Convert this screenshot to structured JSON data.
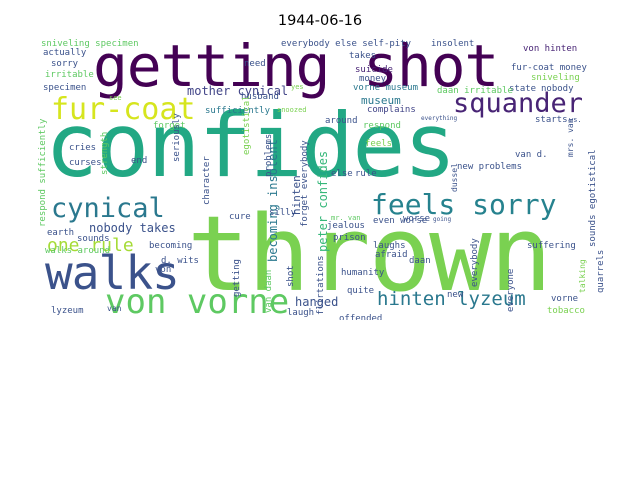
{
  "title": "1944-06-16",
  "words": [
    {
      "text": "thrown",
      "color": "#7ad151"
    },
    {
      "text": "confides",
      "color": "#22a884"
    },
    {
      "text": "getting shot",
      "color": "#440154"
    },
    {
      "text": "walks",
      "color": "#3b528b"
    },
    {
      "text": "fur-coat",
      "color": "#d6e51e"
    },
    {
      "text": "squander",
      "color": "#482475"
    },
    {
      "text": "cynical",
      "color": "#2a788e"
    },
    {
      "text": "feels sorry",
      "color": "#26828e"
    },
    {
      "text": "von vorne",
      "color": "#5ec962"
    },
    {
      "text": "hinten lyzeum",
      "color": "#2a788e"
    },
    {
      "text": "one rule",
      "color": "#a5db36"
    },
    {
      "text": "mother cynical",
      "color": "#414487"
    },
    {
      "text": "museum",
      "color": "#2a788e"
    },
    {
      "text": "nobody takes",
      "color": "#3b528b"
    },
    {
      "text": "hanged",
      "color": "#3b528b"
    },
    {
      "text": "sufficiently",
      "color": "#2a788e"
    },
    {
      "text": "becoming insolent",
      "color": "#2a788e"
    },
    {
      "text": "peter confides",
      "color": "#35b779"
    },
    {
      "text": "hinten",
      "color": "#3b528b"
    },
    {
      "text": "sniveling specimen",
      "color": "#5ec962"
    },
    {
      "text": "everybody else self-pity",
      "color": "#3b528b"
    },
    {
      "text": "insolent",
      "color": "#3b528b"
    },
    {
      "text": "von hinten",
      "color": "#482475"
    },
    {
      "text": "fur-coat money",
      "color": "#3b528b"
    },
    {
      "text": "sniveling",
      "color": "#7ad151"
    },
    {
      "text": "state",
      "color": "#3b528b"
    },
    {
      "text": "nobody",
      "color": "#3b528b"
    },
    {
      "text": "daan irritable",
      "color": "#5ec962"
    },
    {
      "text": "vorne museum",
      "color": "#2a788e"
    },
    {
      "text": "complains",
      "color": "#414487"
    },
    {
      "text": "suicide",
      "color": "#482475"
    },
    {
      "text": "takes",
      "color": "#3b528b"
    },
    {
      "text": "money",
      "color": "#3b528b"
    },
    {
      "text": "need",
      "color": "#3b528b"
    },
    {
      "text": "yes",
      "color": "#7ad151"
    },
    {
      "text": "husband",
      "color": "#3b528b"
    },
    {
      "text": "forget",
      "color": "#5ec962"
    },
    {
      "text": "sorry",
      "color": "#3b528b"
    },
    {
      "text": "irritable",
      "color": "#5ec962"
    },
    {
      "text": "actually",
      "color": "#3b528b"
    },
    {
      "text": "specimen",
      "color": "#3b528b"
    },
    {
      "text": "egotistical",
      "color": "#7ad151"
    },
    {
      "text": "cries",
      "color": "#3b528b"
    },
    {
      "text": "curses",
      "color": "#3b528b"
    },
    {
      "text": "end",
      "color": "#3b528b"
    },
    {
      "text": "around",
      "color": "#3b528b"
    },
    {
      "text": "respond",
      "color": "#5ec962"
    },
    {
      "text": "starts",
      "color": "#3b528b"
    },
    {
      "text": "feels",
      "color": "#7ad151"
    },
    {
      "text": "rule",
      "color": "#3b528b"
    },
    {
      "text": "else",
      "color": "#3b528b"
    },
    {
      "text": "new problems",
      "color": "#3b528b"
    },
    {
      "text": "sounds egotistical",
      "color": "#3b528b"
    },
    {
      "text": "even worse",
      "color": "#3b528b"
    },
    {
      "text": "prison",
      "color": "#3b528b"
    },
    {
      "text": "silly",
      "color": "#3b528b"
    },
    {
      "text": "cure",
      "color": "#3b528b"
    },
    {
      "text": "becoming",
      "color": "#3b528b"
    },
    {
      "text": "laughs",
      "color": "#3b528b"
    },
    {
      "text": "afraid",
      "color": "#3b528b"
    },
    {
      "text": "earth",
      "color": "#3b528b"
    },
    {
      "text": "sounds",
      "color": "#3b528b"
    },
    {
      "text": "walks around",
      "color": "#5ec962"
    },
    {
      "text": "d. wits",
      "color": "#3b528b"
    },
    {
      "text": "daan",
      "color": "#3b528b"
    },
    {
      "text": "humanity",
      "color": "#3b528b"
    },
    {
      "text": "quite",
      "color": "#3b528b"
    },
    {
      "text": "new",
      "color": "#3b528b"
    },
    {
      "text": "vorne",
      "color": "#3b528b"
    },
    {
      "text": "tobacco",
      "color": "#7ad151"
    },
    {
      "text": "lyzeum",
      "color": "#3b528b"
    },
    {
      "text": "laugh",
      "color": "#3b528b"
    },
    {
      "text": "offended",
      "color": "#3b528b"
    },
    {
      "text": "jealous",
      "color": "#3b528b"
    },
    {
      "text": "van",
      "color": "#3b528b"
    },
    {
      "text": "mr. van",
      "color": "#5ec962"
    },
    {
      "text": "worse",
      "color": "#3b528b"
    },
    {
      "text": "problems",
      "color": "#3b528b"
    },
    {
      "text": "strength",
      "color": "#5ec962"
    },
    {
      "text": "respond sufficiently",
      "color": "#5ec962"
    },
    {
      "text": "seriously",
      "color": "#3b528b"
    },
    {
      "text": "character",
      "color": "#3b528b"
    },
    {
      "text": "getting",
      "color": "#3b528b"
    },
    {
      "text": "shot",
      "color": "#3b528b"
    },
    {
      "text": "van daan",
      "color": "#5ec962"
    },
    {
      "text": "forget everybody",
      "color": "#3b528b"
    },
    {
      "text": "flirtations",
      "color": "#3b528b"
    },
    {
      "text": "everybody",
      "color": "#3b528b"
    },
    {
      "text": "dussel",
      "color": "#3b528b"
    },
    {
      "text": "everyone",
      "color": "#3b528b"
    },
    {
      "text": "suffering",
      "color": "#3b528b"
    },
    {
      "text": "talking",
      "color": "#7ad151"
    },
    {
      "text": "quarrels",
      "color": "#3b528b"
    },
    {
      "text": "mrs. van",
      "color": "#3b528b"
    },
    {
      "text": "van d.",
      "color": "#3b528b"
    },
    {
      "text": "ws.",
      "color": "#3b528b"
    },
    {
      "text": "see",
      "color": "#7ad151"
    },
    {
      "text": "snoozed",
      "color": "#7ad151"
    },
    {
      "text": "everything",
      "color": "#3b528b"
    },
    {
      "text": "going",
      "color": "#3b528b"
    },
    {
      "text": "von",
      "color": "#3b528b"
    }
  ]
}
